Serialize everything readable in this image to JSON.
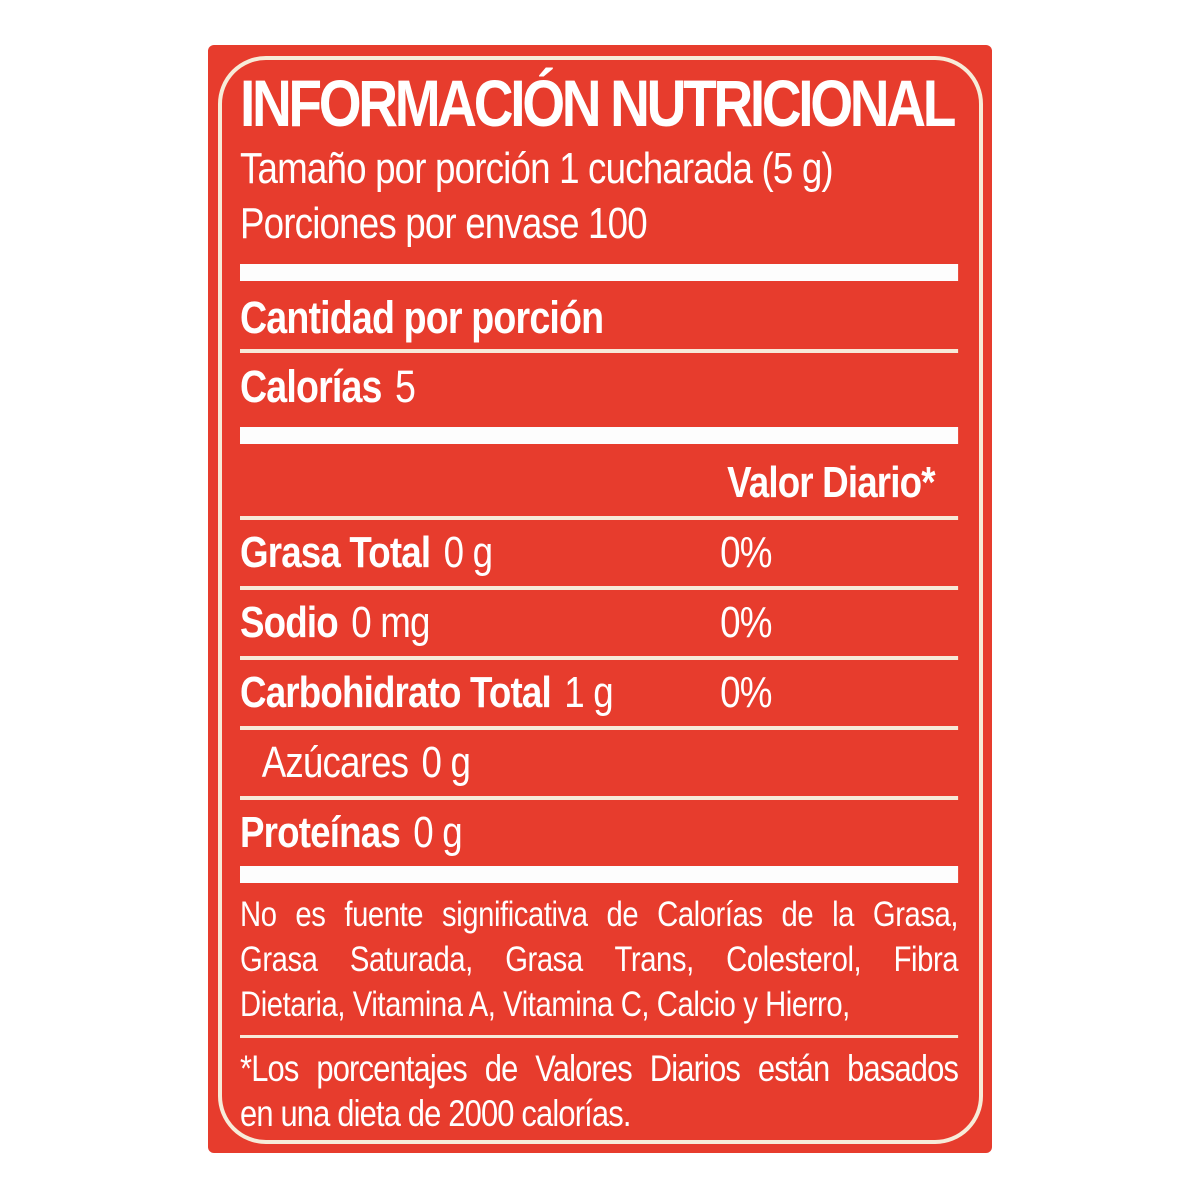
{
  "colors": {
    "label_background_red": "#e73c2d",
    "thick_bar_white": "#fdfdfd",
    "rule_cream": "#f7e9d8",
    "border_cream": "#f7ecd9",
    "text_white": "#ffffff"
  },
  "label": {
    "title": "INFORMACIÓN NUTRICIONAL",
    "serving_size": "Tamaño por porción 1 cucharada (5 g)",
    "servings_per_container": "Porciones por envase 100",
    "amount_per_serving_heading": "Cantidad por porción",
    "calories": {
      "name": "Calorías",
      "value": "5"
    },
    "daily_value_header": "Valor Diario*",
    "nutrients": [
      {
        "name": "Grasa Total",
        "amount": "0 g",
        "daily_value": "0%"
      },
      {
        "name": "Sodio",
        "amount": "0 mg",
        "daily_value": "0%"
      },
      {
        "name": "Carbohidrato Total",
        "amount": "1 g",
        "daily_value": "0%"
      },
      {
        "name": "Azúcares",
        "amount": "0 g",
        "daily_value": ""
      },
      {
        "name": "Proteínas",
        "amount": "0 g",
        "daily_value": ""
      }
    ],
    "not_significant_note": {
      "lines": [
        "No es fuente significativa de Calorías de la Grasa,",
        "Grasa Saturada, Grasa Trans, Colesterol, Fibra",
        "Dietaria, Vitamina A, Vitamina C, Calcio y Hierro,"
      ]
    },
    "daily_value_footnote": {
      "lines": [
        "*Los porcentajes de Valores Diarios están basados",
        "en una dieta de 2000 calorías."
      ]
    }
  }
}
